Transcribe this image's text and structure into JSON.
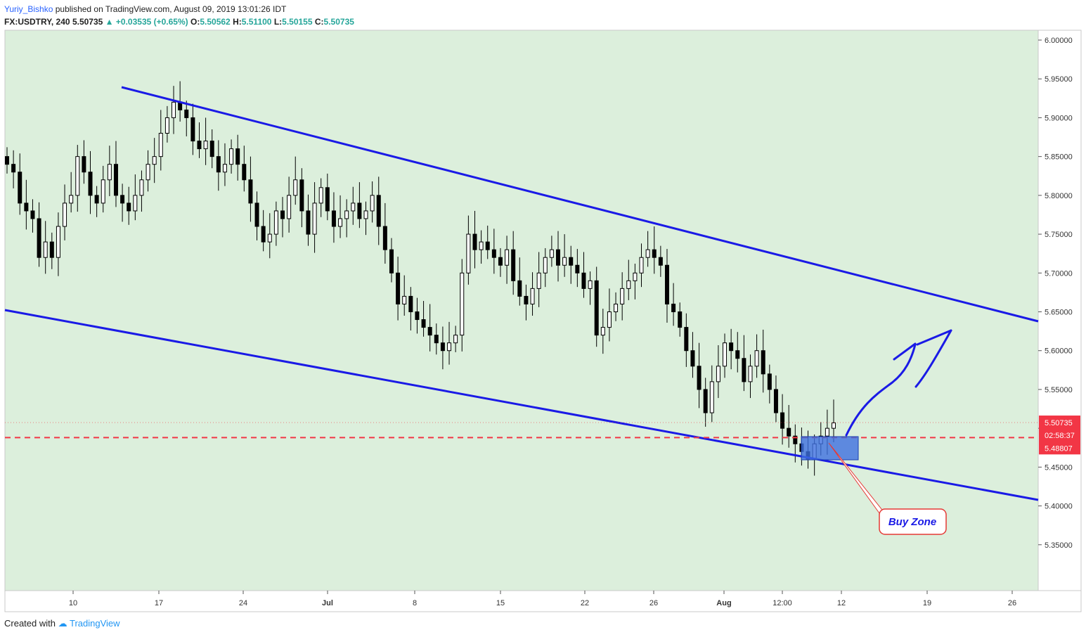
{
  "header": {
    "author": "Yuriy_Bishko",
    "published": "published on TradingView.com, August 09, 2019 13:01:26 IDT",
    "symbol": "FX:USDTRY, 240",
    "last": "5.50735",
    "change": "+0.03535 (+0.65%)",
    "o_label": "O:",
    "o_value": "5.50562",
    "h_label": "H:",
    "h_value": "5.51100",
    "l_label": "L:",
    "l_value": "5.50155",
    "c_label": "C:",
    "c_value": "5.50735"
  },
  "footer": {
    "created_with": "Created with",
    "brand": "TradingView"
  },
  "colors": {
    "background": "#dcefdc",
    "trendline": "#1a1ae6",
    "candle": "#000000",
    "support_dashed": "#f23645",
    "buy_zone_fill": "#3d6fe0",
    "price_badge": "#f23645"
  },
  "chart_data": {
    "type": "candlestick",
    "ylim": [
      5.3,
      6.0
    ],
    "y_ticks": [
      "6.00000",
      "5.95000",
      "5.90000",
      "5.85000",
      "5.80000",
      "5.75000",
      "5.70000",
      "5.65000",
      "5.60000",
      "5.55000",
      "5.50000",
      "5.45000",
      "5.40000",
      "5.35000"
    ],
    "x_ticks": [
      "10",
      "17",
      "24",
      "Jul",
      "8",
      "15",
      "22",
      "26",
      "Aug",
      "12:00",
      "12",
      "19",
      "26"
    ],
    "closes": [
      5.84,
      5.83,
      5.79,
      5.78,
      5.77,
      5.72,
      5.74,
      5.72,
      5.76,
      5.79,
      5.8,
      5.85,
      5.83,
      5.8,
      5.79,
      5.82,
      5.84,
      5.8,
      5.79,
      5.78,
      5.8,
      5.82,
      5.84,
      5.85,
      5.88,
      5.9,
      5.92,
      5.91,
      5.9,
      5.87,
      5.86,
      5.87,
      5.85,
      5.83,
      5.84,
      5.86,
      5.84,
      5.82,
      5.79,
      5.76,
      5.74,
      5.75,
      5.78,
      5.77,
      5.8,
      5.82,
      5.78,
      5.75,
      5.79,
      5.81,
      5.78,
      5.76,
      5.77,
      5.78,
      5.79,
      5.77,
      5.78,
      5.8,
      5.76,
      5.73,
      5.7,
      5.66,
      5.67,
      5.65,
      5.64,
      5.63,
      5.62,
      5.61,
      5.6,
      5.61,
      5.62,
      5.7,
      5.75,
      5.73,
      5.74,
      5.73,
      5.72,
      5.71,
      5.73,
      5.69,
      5.67,
      5.66,
      5.68,
      5.7,
      5.72,
      5.73,
      5.71,
      5.72,
      5.71,
      5.7,
      5.68,
      5.69,
      5.62,
      5.63,
      5.65,
      5.66,
      5.68,
      5.69,
      5.7,
      5.72,
      5.73,
      5.72,
      5.71,
      5.66,
      5.65,
      5.63,
      5.6,
      5.58,
      5.55,
      5.52,
      5.56,
      5.58,
      5.61,
      5.6,
      5.59,
      5.56,
      5.58,
      5.6,
      5.57,
      5.55,
      5.52,
      5.5,
      5.49,
      5.48,
      5.47,
      5.46,
      5.48,
      5.49,
      5.5,
      5.507
    ],
    "buy_zone_label": "Buy Zone",
    "last_price_label": "5.50735",
    "countdown_label": "02:58:37",
    "support_price_label": "5.48807",
    "support_level": 5.48807,
    "last_price": 5.50735
  }
}
